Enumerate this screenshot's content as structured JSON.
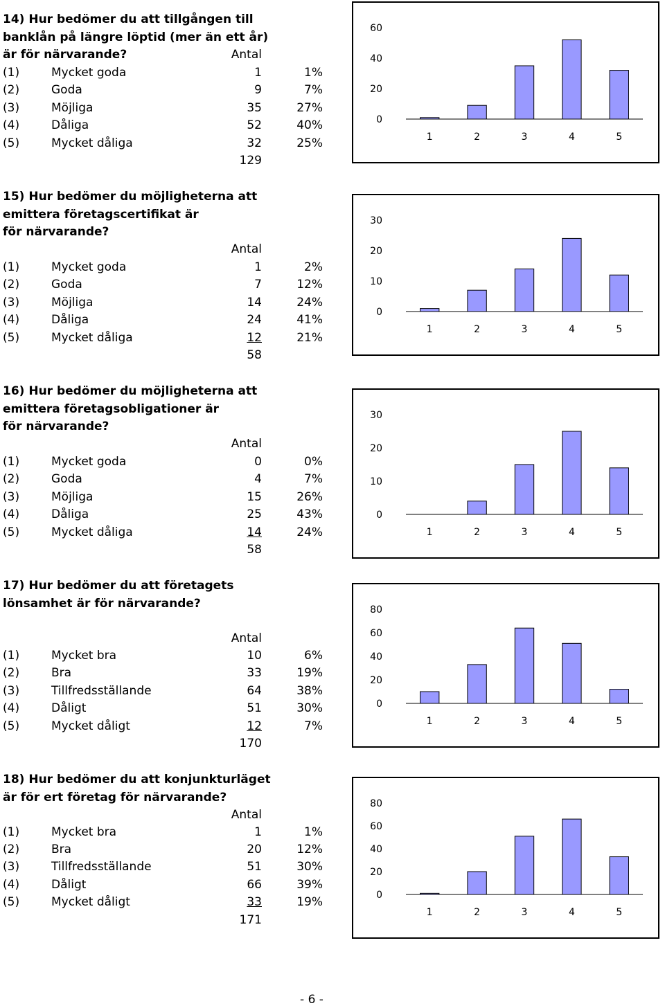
{
  "questions": [
    {
      "title_lines": [
        "14) Hur bedömer du att tillgången till",
        "banklån på längre löptid (mer än ett år)",
        "är för närvarande?"
      ],
      "antal": "Antal",
      "rows": [
        {
          "num": "(1)",
          "label": "Mycket goda",
          "count": "1",
          "pct": "1%"
        },
        {
          "num": "(2)",
          "label": "Goda",
          "count": "9",
          "pct": "7%"
        },
        {
          "num": "(3)",
          "label": "Möjliga",
          "count": "35",
          "pct": "27%"
        },
        {
          "num": "(4)",
          "label": "Dåliga",
          "count": "52",
          "pct": "40%"
        },
        {
          "num": "(5)",
          "label": "Mycket dåliga",
          "count": "32",
          "pct": "25%"
        }
      ],
      "total": "129"
    },
    {
      "title_lines": [
        "15) Hur bedömer du möjligheterna att",
        "emittera företagscertifikat är",
        "för närvarande?"
      ],
      "antal": "Antal",
      "rows": [
        {
          "num": "(1)",
          "label": "Mycket goda",
          "count": "1",
          "pct": "2%"
        },
        {
          "num": "(2)",
          "label": "Goda",
          "count": "7",
          "pct": "12%"
        },
        {
          "num": "(3)",
          "label": "Möjliga",
          "count": "14",
          "pct": "24%"
        },
        {
          "num": "(4)",
          "label": "Dåliga",
          "count": "24",
          "pct": "41%"
        },
        {
          "num": "(5)",
          "label": "Mycket dåliga",
          "count": "12",
          "pct": "21%"
        }
      ],
      "total": "58"
    },
    {
      "title_lines": [
        "16) Hur bedömer du möjligheterna att",
        "emittera företagsobligationer är",
        "för närvarande?"
      ],
      "antal": "Antal",
      "rows": [
        {
          "num": "(1)",
          "label": "Mycket goda",
          "count": "0",
          "pct": "0%"
        },
        {
          "num": "(2)",
          "label": "Goda",
          "count": "4",
          "pct": "7%"
        },
        {
          "num": "(3)",
          "label": "Möjliga",
          "count": "15",
          "pct": "26%"
        },
        {
          "num": "(4)",
          "label": "Dåliga",
          "count": "25",
          "pct": "43%"
        },
        {
          "num": "(5)",
          "label": "Mycket dåliga",
          "count": "14",
          "pct": "24%"
        }
      ],
      "total": "58"
    },
    {
      "title_lines": [
        "17) Hur bedömer du att företagets",
        "lönsamhet är för närvarande?"
      ],
      "antal": "Antal",
      "rows": [
        {
          "num": "(1)",
          "label": "Mycket bra",
          "count": "10",
          "pct": "6%"
        },
        {
          "num": "(2)",
          "label": "Bra",
          "count": "33",
          "pct": "19%"
        },
        {
          "num": "(3)",
          "label": "Tillfredsställande",
          "count": "64",
          "pct": "38%"
        },
        {
          "num": "(4)",
          "label": "Dåligt",
          "count": "51",
          "pct": "30%"
        },
        {
          "num": "(5)",
          "label": "Mycket dåligt",
          "count": "12",
          "pct": "7%"
        }
      ],
      "total": "170"
    },
    {
      "title_lines": [
        "18) Hur bedömer du att konjunkturläget",
        "är för ert företag för närvarande?"
      ],
      "antal": "Antal",
      "rows": [
        {
          "num": "(1)",
          "label": "Mycket bra",
          "count": "1",
          "pct": "1%"
        },
        {
          "num": "(2)",
          "label": "Bra",
          "count": "20",
          "pct": "12%"
        },
        {
          "num": "(3)",
          "label": "Tillfredsställande",
          "count": "51",
          "pct": "30%"
        },
        {
          "num": "(4)",
          "label": "Dåligt",
          "count": "66",
          "pct": "39%"
        },
        {
          "num": "(5)",
          "label": "Mycket dåligt",
          "count": "33",
          "pct": "19%"
        }
      ],
      "total": "171"
    }
  ],
  "chart_data": [
    {
      "type": "bar",
      "categories": [
        "1",
        "2",
        "3",
        "4",
        "5"
      ],
      "values": [
        1,
        9,
        35,
        52,
        32
      ],
      "yticks": [
        0,
        20,
        40,
        60
      ],
      "ylim": [
        0,
        60
      ],
      "grid": false,
      "bar_color": "#9999ff"
    },
    {
      "type": "bar",
      "categories": [
        "1",
        "2",
        "3",
        "4",
        "5"
      ],
      "values": [
        1,
        7,
        14,
        24,
        12
      ],
      "yticks": [
        0,
        10,
        20,
        30
      ],
      "ylim": [
        0,
        30
      ],
      "grid": false,
      "bar_color": "#9999ff"
    },
    {
      "type": "bar",
      "categories": [
        "1",
        "2",
        "3",
        "4",
        "5"
      ],
      "values": [
        0,
        4,
        15,
        25,
        14
      ],
      "yticks": [
        0,
        10,
        20,
        30
      ],
      "ylim": [
        0,
        30
      ],
      "grid": false,
      "bar_color": "#9999ff"
    },
    {
      "type": "bar",
      "categories": [
        "1",
        "2",
        "3",
        "4",
        "5"
      ],
      "values": [
        10,
        33,
        64,
        51,
        12
      ],
      "yticks": [
        0,
        20,
        40,
        60,
        80
      ],
      "ylim": [
        0,
        80
      ],
      "grid": false,
      "bar_color": "#9999ff"
    },
    {
      "type": "bar",
      "categories": [
        "1",
        "2",
        "3",
        "4",
        "5"
      ],
      "values": [
        1,
        20,
        51,
        66,
        33
      ],
      "yticks": [
        0,
        20,
        40,
        60,
        80
      ],
      "ylim": [
        0,
        80
      ],
      "grid": false,
      "bar_color": "#9999ff"
    }
  ],
  "footer": {
    "page_number": "- 6 -"
  }
}
